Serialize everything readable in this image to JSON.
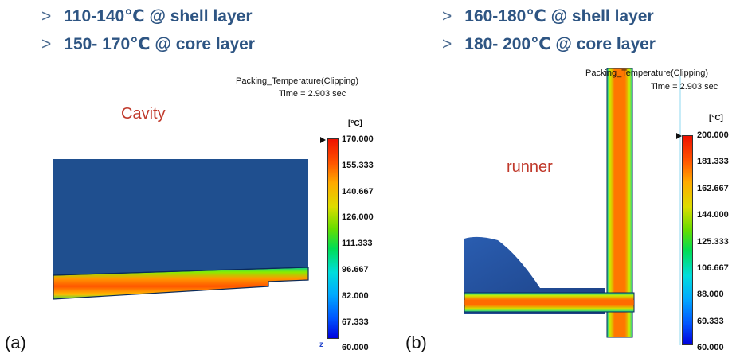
{
  "bullets_left": [
    {
      "marker": ">",
      "text": "110-140℃ @ shell layer"
    },
    {
      "marker": ">",
      "text": "150- 170℃ @ core layer"
    }
  ],
  "bullets_right": [
    {
      "marker": ">",
      "text": "160-180℃ @ shell layer"
    },
    {
      "marker": ">",
      "text": "180- 200℃ @ core layer"
    }
  ],
  "panel_a": {
    "label": "(a)",
    "sim_title": "Packing_Temperature(Clipping)",
    "time": "Time = 2.903 sec",
    "region": "Cavity",
    "unit": "[°C]",
    "ticks": [
      "170.000",
      "155.333",
      "140.667",
      "126.000",
      "111.333",
      "96.667",
      "82.000",
      "67.333",
      "60.000"
    ],
    "axis_letter": "z"
  },
  "panel_b": {
    "label": "(b)",
    "sim_title": "Packing_Temperature(Clipping)",
    "time": "Time = 2.903 sec",
    "region": "runner",
    "unit": "[°C]",
    "ticks": [
      "200.000",
      "181.333",
      "162.667",
      "144.000",
      "125.333",
      "106.667",
      "88.000",
      "69.333",
      "60.000"
    ]
  },
  "colors": {
    "mold_blue": "#1f4f8f",
    "heading": "#2e5583",
    "region_label": "#c0392b"
  }
}
